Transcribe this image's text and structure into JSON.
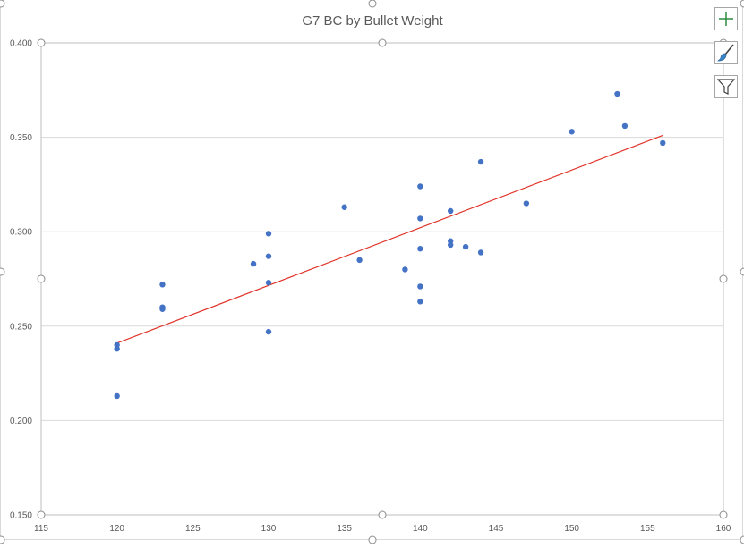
{
  "chart_data": {
    "type": "scatter",
    "title": "G7 BC by Bullet Weight",
    "xlabel": "",
    "ylabel": "",
    "xlim": [
      115,
      160
    ],
    "ylim": [
      0.15,
      0.4
    ],
    "x_ticks": [
      "115",
      "120",
      "125",
      "130",
      "135",
      "140",
      "145",
      "150",
      "155",
      "160"
    ],
    "y_ticks": [
      "0.150",
      "0.200",
      "0.250",
      "0.300",
      "0.350",
      "0.400"
    ],
    "grid": "horizontal",
    "legend": "none",
    "series": [
      {
        "color": "#4472c4",
        "points": [
          [
            120,
            0.24
          ],
          [
            120,
            0.238
          ],
          [
            120,
            0.213
          ],
          [
            123,
            0.272
          ],
          [
            123,
            0.26
          ],
          [
            123,
            0.259
          ],
          [
            129,
            0.283
          ],
          [
            130,
            0.299
          ],
          [
            130,
            0.287
          ],
          [
            130,
            0.273
          ],
          [
            130,
            0.247
          ],
          [
            135,
            0.313
          ],
          [
            136,
            0.285
          ],
          [
            139,
            0.28
          ],
          [
            140,
            0.324
          ],
          [
            140,
            0.307
          ],
          [
            140,
            0.291
          ],
          [
            140,
            0.271
          ],
          [
            140,
            0.263
          ],
          [
            142,
            0.311
          ],
          [
            142,
            0.295
          ],
          [
            142,
            0.293
          ],
          [
            143,
            0.292
          ],
          [
            144,
            0.337
          ],
          [
            144,
            0.289
          ],
          [
            147,
            0.315
          ],
          [
            150,
            0.353
          ],
          [
            153,
            0.373
          ],
          [
            153.5,
            0.356
          ],
          [
            156,
            0.347
          ]
        ]
      }
    ],
    "trendline": {
      "type": "linear",
      "color": "#e0352b",
      "from": [
        120,
        0.241
      ],
      "to": [
        156,
        0.351
      ]
    }
  },
  "colors": {
    "marker": "#4472c4",
    "trendline": "#e0352b",
    "gridline": "#d9d9d9",
    "frame": "#bfbfbf",
    "handle": "#8c8c8c",
    "text": "#595959"
  },
  "side_buttons": [
    {
      "icon": "plus-icon"
    },
    {
      "icon": "paintbrush-icon"
    },
    {
      "icon": "funnel-filter-icon"
    }
  ]
}
